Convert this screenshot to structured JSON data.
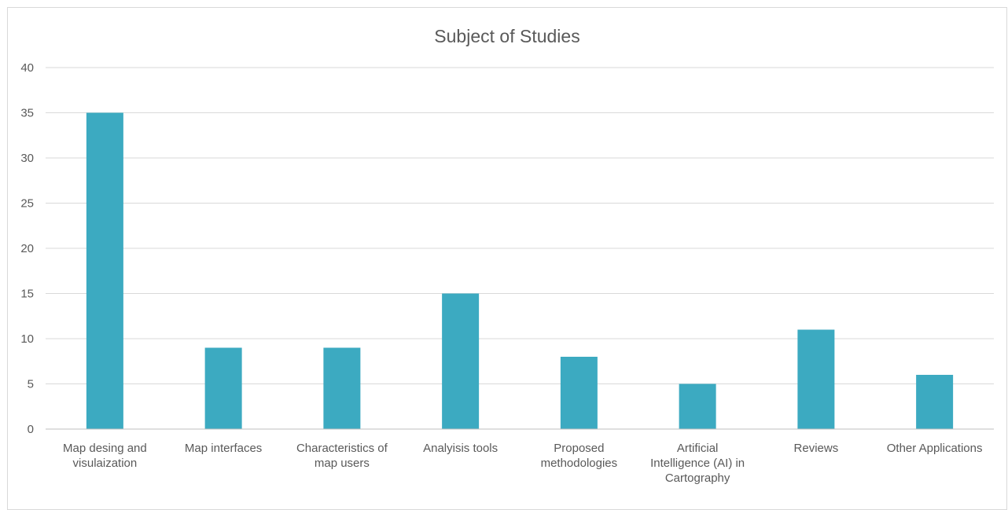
{
  "chart_data": {
    "type": "bar",
    "title": "Subject of Studies",
    "xlabel": "",
    "ylabel": "",
    "ylim": [
      0,
      40
    ],
    "yticks": [
      0,
      5,
      10,
      15,
      20,
      25,
      30,
      35,
      40
    ],
    "grid": true,
    "legend": "none",
    "bar_color": "#3caac1",
    "categories": [
      [
        "Map desing and",
        "visulaization"
      ],
      [
        "Map interfaces"
      ],
      [
        "Characteristics of",
        "map users"
      ],
      [
        "Analyisis tools"
      ],
      [
        "Proposed",
        "methodologies"
      ],
      [
        "Artificial",
        "Intelligence (AI) in",
        "Cartography"
      ],
      [
        "Reviews"
      ],
      [
        "Other Applications"
      ]
    ],
    "values": [
      35,
      9,
      9,
      15,
      8,
      5,
      11,
      6
    ]
  }
}
